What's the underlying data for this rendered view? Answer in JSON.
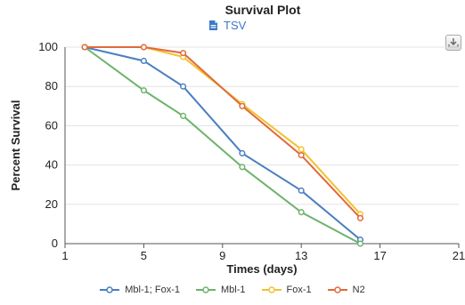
{
  "title": "Survival Plot",
  "tsv_label": "TSV",
  "export_icon": "download-icon",
  "chart_data": {
    "type": "line",
    "title": "Survival Plot",
    "xlabel": "Times (days)",
    "ylabel": "Percent Survival",
    "xlim": [
      1,
      21
    ],
    "ylim": [
      0,
      100
    ],
    "xticks": [
      1,
      5,
      9,
      13,
      17,
      21
    ],
    "yticks": [
      0,
      20,
      40,
      60,
      80,
      100
    ],
    "grid": "horizontal",
    "legend_position": "bottom",
    "series": [
      {
        "name": "Mbl-1; Fox-1",
        "color": "#4a7fc1",
        "x": [
          2,
          5,
          7,
          10,
          13,
          16
        ],
        "values": [
          100,
          93,
          80,
          46,
          27,
          2
        ]
      },
      {
        "name": "Mbl-1",
        "color": "#6db36d",
        "x": [
          2,
          5,
          7,
          10,
          13,
          16
        ],
        "values": [
          100,
          78,
          65,
          39,
          16,
          0
        ]
      },
      {
        "name": "Fox-1",
        "color": "#f2c230",
        "x": [
          2,
          5,
          7,
          10,
          13,
          16
        ],
        "values": [
          100,
          100,
          95,
          71,
          48,
          15
        ]
      },
      {
        "name": "N2",
        "color": "#e06a3a",
        "x": [
          2,
          5,
          7,
          10,
          13,
          16
        ],
        "values": [
          100,
          100,
          97,
          70,
          45,
          13
        ]
      }
    ]
  }
}
